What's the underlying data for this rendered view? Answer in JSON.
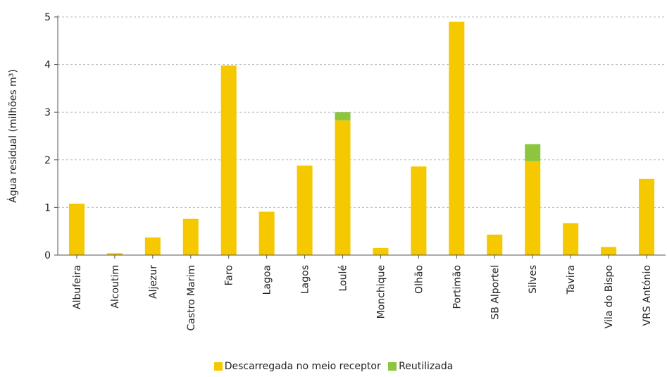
{
  "chart_data": {
    "type": "bar",
    "stacked": true,
    "categories": [
      "Albufeira",
      "Alcoutim",
      "Aljezur",
      "Castro Marim",
      "Faro",
      "Lagoa",
      "Lagos",
      "Loulé",
      "Monchique",
      "Olhão",
      "Portimão",
      "SB Alportel",
      "Silves",
      "Tavira",
      "Vila do Bispo",
      "VRS António"
    ],
    "series": [
      {
        "name": "Descarregada no meio receptor",
        "color": "#f5c800",
        "values": [
          1.08,
          0.04,
          0.37,
          0.76,
          3.98,
          0.91,
          1.88,
          2.83,
          0.15,
          1.86,
          4.9,
          0.43,
          1.97,
          0.67,
          0.17,
          1.6
        ]
      },
      {
        "name": "Reutilizada",
        "color": "#8cc63f",
        "values": [
          0,
          0,
          0,
          0,
          0,
          0,
          0,
          0.17,
          0,
          0,
          0,
          0,
          0.36,
          0,
          0,
          0
        ]
      }
    ],
    "ylabel": "Água residual (milhões m³)",
    "xlabel": "",
    "ylim": [
      0,
      5
    ],
    "yticks": [
      "0",
      "1",
      "2",
      "3",
      "4",
      "5"
    ],
    "grid": true,
    "legend_position": "bottom"
  }
}
